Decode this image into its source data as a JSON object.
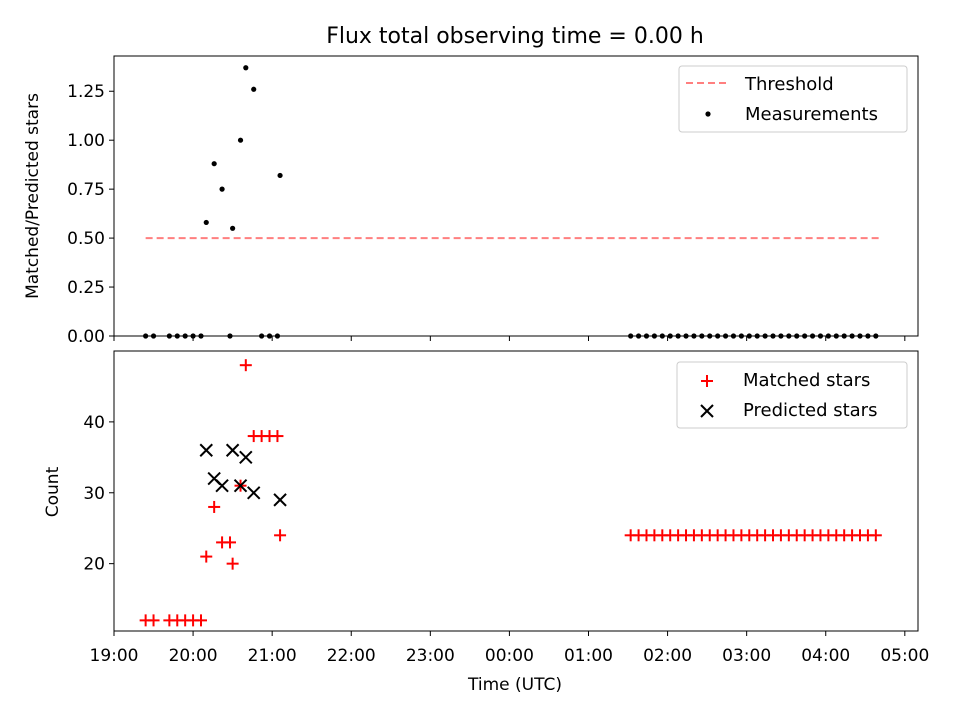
{
  "title": "Flux total observing time = 0.00 h",
  "chart_data": [
    {
      "type": "scatter",
      "panel": "top",
      "ylabel": "Matched/Predicted stars",
      "xlabel": "",
      "ylim": [
        0,
        1.43
      ],
      "yticks": [
        0.0,
        0.25,
        0.5,
        0.75,
        1.0,
        1.25
      ],
      "ytick_labels": [
        "0.00",
        "0.25",
        "0.50",
        "0.75",
        "1.00",
        "1.25"
      ],
      "legend_position": "upper right",
      "threshold": {
        "name": "Threshold",
        "value": 0.5,
        "x_start": "19:24",
        "x_end": "04:42",
        "color": "#ff7f7f",
        "style": "dashed"
      },
      "series": [
        {
          "name": "Measurements",
          "marker": "dot",
          "color": "#000000",
          "points": [
            [
              "19:24",
              0
            ],
            [
              "19:30",
              0
            ],
            [
              "19:42",
              0
            ],
            [
              "19:48",
              0
            ],
            [
              "19:54",
              0
            ],
            [
              "20:00",
              0
            ],
            [
              "20:06",
              0
            ],
            [
              "20:10",
              0.58
            ],
            [
              "20:16",
              0.88
            ],
            [
              "20:22",
              0.75
            ],
            [
              "20:28",
              0
            ],
            [
              "20:30",
              0.55
            ],
            [
              "20:36",
              1.0
            ],
            [
              "20:40",
              1.37
            ],
            [
              "20:46",
              1.26
            ],
            [
              "20:52",
              0
            ],
            [
              "20:58",
              0
            ],
            [
              "21:04",
              0
            ],
            [
              "21:06",
              0.82
            ],
            [
              "01:32",
              0
            ],
            [
              "01:38",
              0
            ],
            [
              "01:44",
              0
            ],
            [
              "01:50",
              0
            ],
            [
              "01:56",
              0
            ],
            [
              "02:02",
              0
            ],
            [
              "02:08",
              0
            ],
            [
              "02:14",
              0
            ],
            [
              "02:20",
              0
            ],
            [
              "02:26",
              0
            ],
            [
              "02:32",
              0
            ],
            [
              "02:38",
              0
            ],
            [
              "02:44",
              0
            ],
            [
              "02:50",
              0
            ],
            [
              "02:56",
              0
            ],
            [
              "03:02",
              0
            ],
            [
              "03:08",
              0
            ],
            [
              "03:14",
              0
            ],
            [
              "03:20",
              0
            ],
            [
              "03:26",
              0
            ],
            [
              "03:32",
              0
            ],
            [
              "03:38",
              0
            ],
            [
              "03:44",
              0
            ],
            [
              "03:50",
              0
            ],
            [
              "03:56",
              0
            ],
            [
              "04:02",
              0
            ],
            [
              "04:08",
              0
            ],
            [
              "04:14",
              0
            ],
            [
              "04:20",
              0
            ],
            [
              "04:26",
              0
            ],
            [
              "04:32",
              0
            ],
            [
              "04:38",
              0
            ]
          ]
        }
      ]
    },
    {
      "type": "scatter",
      "panel": "bottom",
      "ylabel": "Count",
      "xlabel": "Time (UTC)",
      "ylim": [
        10.5,
        50
      ],
      "yticks": [
        20,
        30,
        40
      ],
      "ytick_labels": [
        "20",
        "30",
        "40"
      ],
      "xlim": [
        "19:00",
        "05:10"
      ],
      "xtick_labels": [
        "19:00",
        "20:00",
        "21:00",
        "22:00",
        "23:00",
        "00:00",
        "01:00",
        "02:00",
        "03:00",
        "04:00",
        "05:00"
      ],
      "legend_position": "upper right",
      "series": [
        {
          "name": "Matched stars",
          "marker": "plus",
          "color": "#ff0000",
          "points": [
            [
              "19:24",
              12
            ],
            [
              "19:30",
              12
            ],
            [
              "19:42",
              12
            ],
            [
              "19:48",
              12
            ],
            [
              "19:54",
              12
            ],
            [
              "20:00",
              12
            ],
            [
              "20:06",
              12
            ],
            [
              "20:10",
              21
            ],
            [
              "20:16",
              28
            ],
            [
              "20:22",
              23
            ],
            [
              "20:28",
              23
            ],
            [
              "20:30",
              20
            ],
            [
              "20:36",
              31
            ],
            [
              "20:40",
              48
            ],
            [
              "20:46",
              38
            ],
            [
              "20:52",
              38
            ],
            [
              "20:58",
              38
            ],
            [
              "21:04",
              38
            ],
            [
              "21:06",
              24
            ],
            [
              "01:32",
              24
            ],
            [
              "01:38",
              24
            ],
            [
              "01:44",
              24
            ],
            [
              "01:50",
              24
            ],
            [
              "01:56",
              24
            ],
            [
              "02:02",
              24
            ],
            [
              "02:08",
              24
            ],
            [
              "02:14",
              24
            ],
            [
              "02:20",
              24
            ],
            [
              "02:26",
              24
            ],
            [
              "02:32",
              24
            ],
            [
              "02:38",
              24
            ],
            [
              "02:44",
              24
            ],
            [
              "02:50",
              24
            ],
            [
              "02:56",
              24
            ],
            [
              "03:02",
              24
            ],
            [
              "03:08",
              24
            ],
            [
              "03:14",
              24
            ],
            [
              "03:20",
              24
            ],
            [
              "03:26",
              24
            ],
            [
              "03:32",
              24
            ],
            [
              "03:38",
              24
            ],
            [
              "03:44",
              24
            ],
            [
              "03:50",
              24
            ],
            [
              "03:56",
              24
            ],
            [
              "04:02",
              24
            ],
            [
              "04:08",
              24
            ],
            [
              "04:14",
              24
            ],
            [
              "04:20",
              24
            ],
            [
              "04:26",
              24
            ],
            [
              "04:32",
              24
            ],
            [
              "04:38",
              24
            ]
          ]
        },
        {
          "name": "Predicted stars",
          "marker": "x",
          "color": "#000000",
          "points": [
            [
              "20:10",
              36
            ],
            [
              "20:16",
              32
            ],
            [
              "20:22",
              31
            ],
            [
              "20:30",
              36
            ],
            [
              "20:36",
              31
            ],
            [
              "20:40",
              35
            ],
            [
              "20:46",
              30
            ],
            [
              "21:06",
              29
            ]
          ]
        }
      ]
    }
  ]
}
